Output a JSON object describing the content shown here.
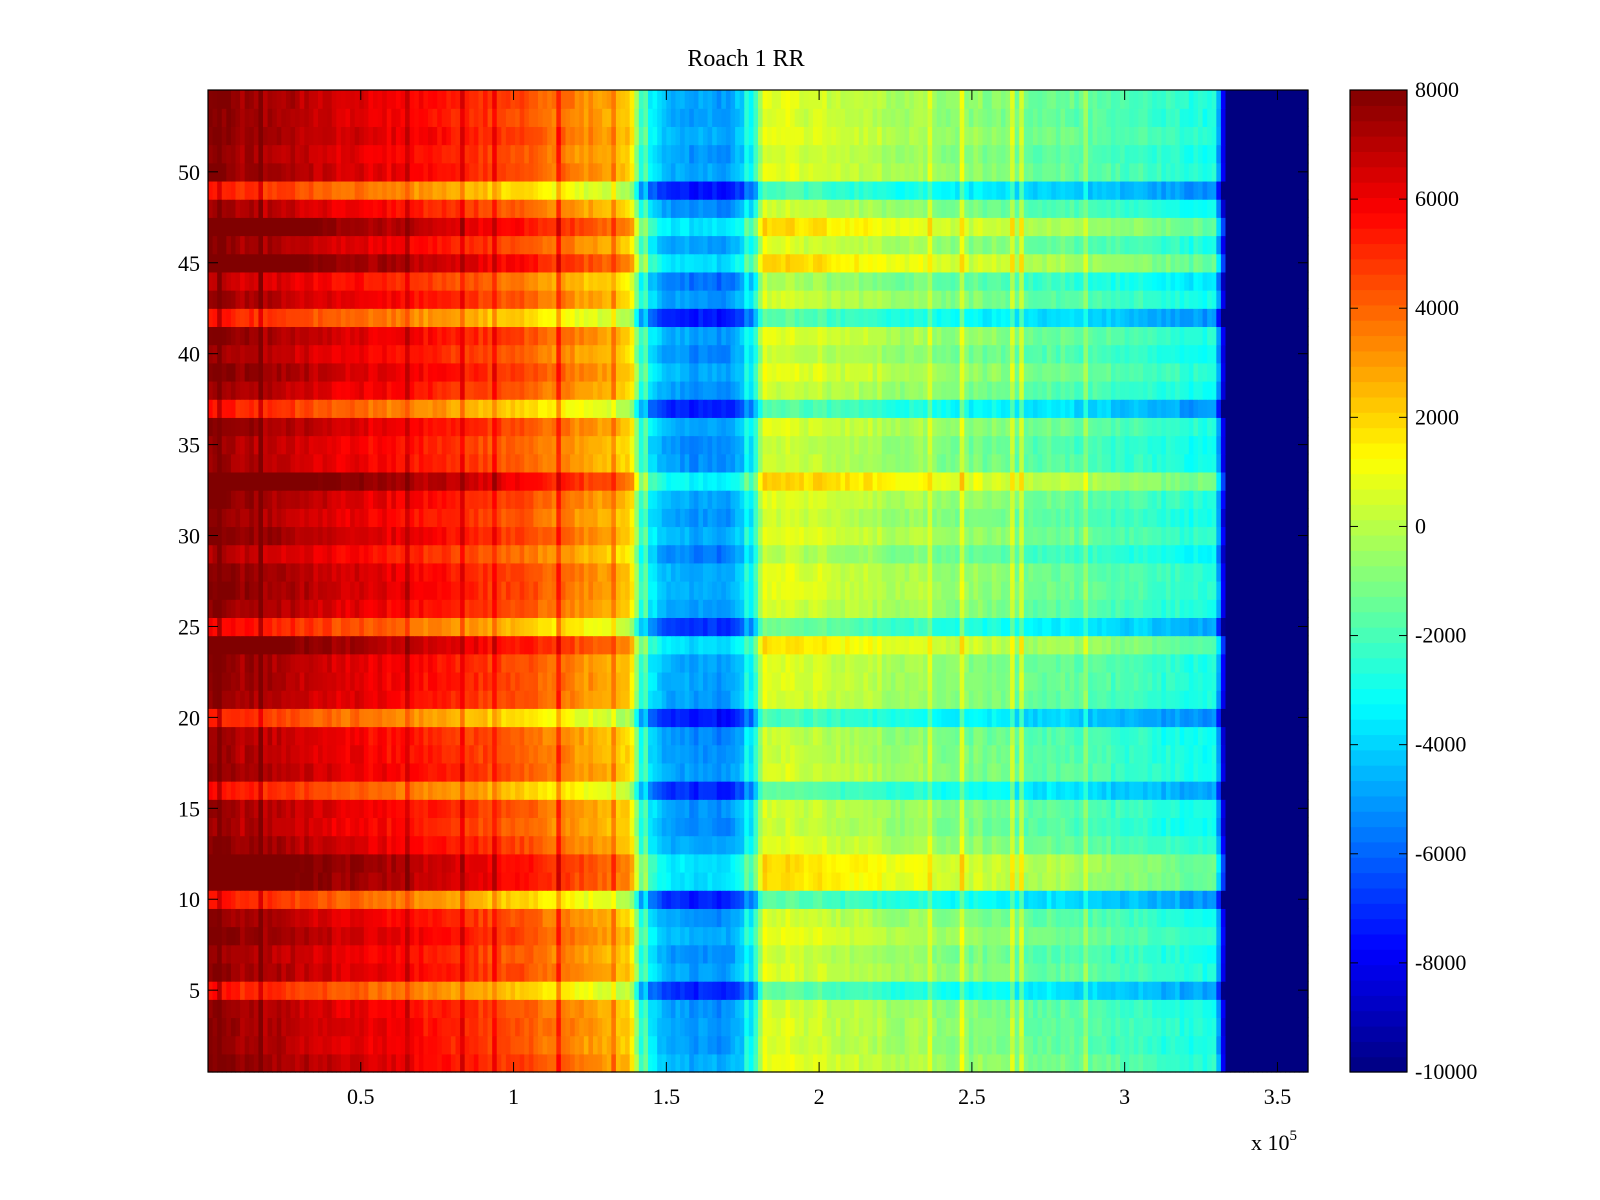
{
  "chart_data": {
    "type": "heatmap",
    "title": "Roach 1 RR",
    "xlabel": "",
    "ylabel": "",
    "x_multiplier_label": "x 10",
    "x_multiplier_exponent": "5",
    "xlim": [
      0,
      3.6
    ],
    "ylim": [
      0.5,
      54.5
    ],
    "rows": 54,
    "x_ticks": [
      0.5,
      1,
      1.5,
      2,
      2.5,
      3,
      3.5
    ],
    "x_tick_labels": [
      "0.5",
      "1",
      "1.5",
      "2",
      "2.5",
      "3",
      "3.5"
    ],
    "y_ticks": [
      5,
      10,
      15,
      20,
      25,
      30,
      35,
      40,
      45,
      50
    ],
    "y_tick_labels": [
      "5",
      "10",
      "15",
      "20",
      "25",
      "30",
      "35",
      "40",
      "45",
      "50"
    ],
    "colorbar": {
      "colormap": "jet",
      "range": [
        -10000,
        8000
      ],
      "ticks": [
        8000,
        6000,
        4000,
        2000,
        0,
        -2000,
        -4000,
        -6000,
        -8000,
        -10000
      ],
      "tick_labels": [
        "8000",
        "6000",
        "4000",
        "2000",
        "0",
        "-2000",
        "-4000",
        "-6000",
        "-8000",
        "-10000"
      ]
    },
    "value_profile_by_x": [
      {
        "x": 0.0,
        "value": 7600
      },
      {
        "x": 0.3,
        "value": 6800
      },
      {
        "x": 0.6,
        "value": 5800
      },
      {
        "x": 0.9,
        "value": 4800
      },
      {
        "x": 1.2,
        "value": 3400
      },
      {
        "x": 1.38,
        "value": 2300
      },
      {
        "x": 1.42,
        "value": -3000
      },
      {
        "x": 1.5,
        "value": -4600
      },
      {
        "x": 1.6,
        "value": -5200
      },
      {
        "x": 1.72,
        "value": -5000
      },
      {
        "x": 1.78,
        "value": -3500
      },
      {
        "x": 1.82,
        "value": 700
      },
      {
        "x": 2.0,
        "value": 300
      },
      {
        "x": 2.5,
        "value": -900
      },
      {
        "x": 3.0,
        "value": -2000
      },
      {
        "x": 3.3,
        "value": -3000
      },
      {
        "x": 3.33,
        "value": -10000
      },
      {
        "x": 3.6,
        "value": -10000
      }
    ],
    "low_signal_rows": [
      49,
      20,
      10,
      29,
      37,
      42,
      16,
      5,
      44,
      25
    ],
    "high_signal_rows": [
      45,
      44,
      11,
      47,
      33,
      29,
      24,
      12
    ]
  }
}
